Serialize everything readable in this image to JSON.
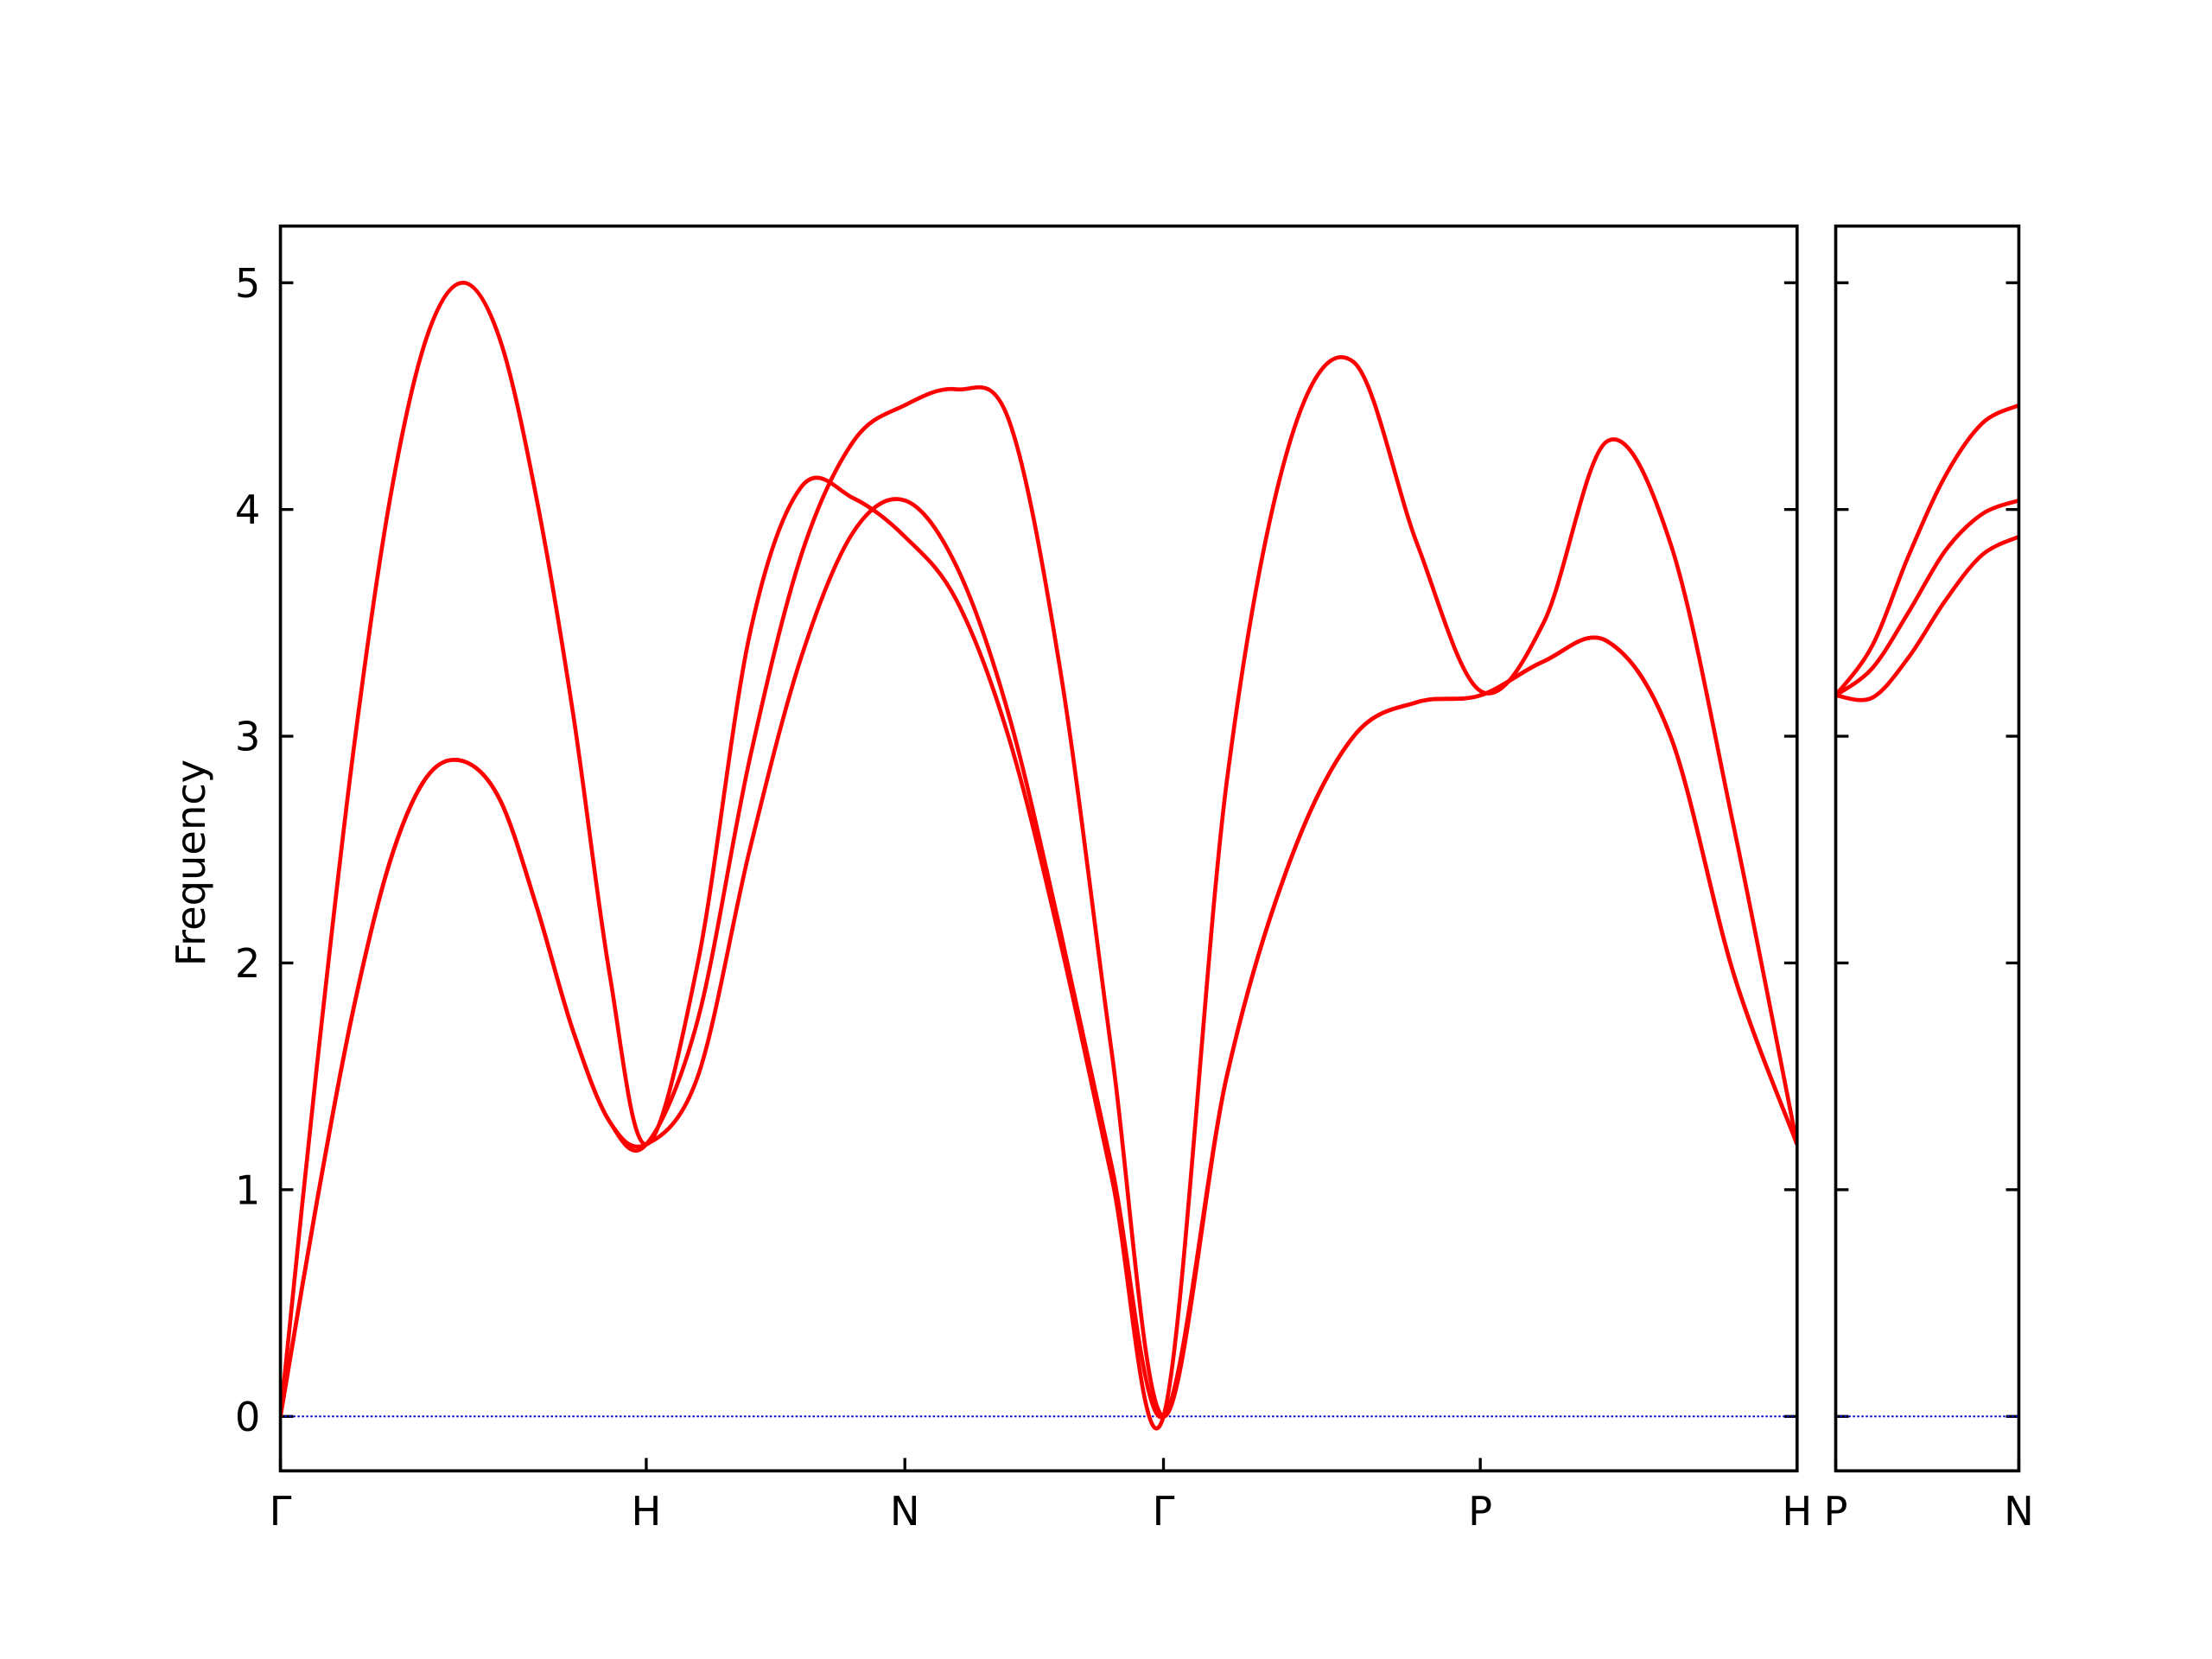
{
  "chart_data": [
    {
      "type": "line",
      "ylabel": "Frequency",
      "x": [
        0,
        0.1,
        0.2,
        0.3,
        0.4,
        0.5,
        0.6,
        0.7,
        0.8,
        0.9,
        1.0,
        1.141,
        1.283,
        1.424,
        1.566,
        1.707,
        1.848,
        1.99,
        2.131,
        2.273,
        2.414,
        2.587,
        2.76,
        2.934,
        3.107,
        3.28,
        3.453,
        3.626,
        3.8,
        3.973,
        4.146
      ],
      "series": [
        {
          "color": "#ff0000",
          "values": [
            0,
            1.55,
            2.94,
            4.05,
            4.76,
            5.0,
            4.75,
            4.05,
            3.1,
            1.95,
            1.2,
            2.0,
            3.45,
            4.1,
            4.05,
            3.88,
            3.6,
            3.0,
            2.1,
            1.05,
            0,
            2.8,
            4.3,
            4.65,
            3.85,
            3.2,
            3.5,
            4.3,
            3.85,
            2.6,
            1.2
          ]
        },
        {
          "color": "#ff0000",
          "values": [
            0,
            0.95,
            1.8,
            2.45,
            2.82,
            2.89,
            2.72,
            2.25,
            1.7,
            1.3,
            1.2,
            1.75,
            2.9,
            3.8,
            4.3,
            4.46,
            4.53,
            4.4,
            3.3,
            1.6,
            0,
            1.5,
            2.45,
            3.0,
            3.15,
            3.18,
            3.33,
            3.42,
            3.0,
            1.95,
            1.2
          ]
        },
        {
          "color": "#ff0000",
          "values": [
            0,
            0.95,
            1.8,
            2.45,
            2.82,
            2.89,
            2.72,
            2.25,
            1.7,
            1.3,
            1.2,
            1.5,
            2.5,
            3.35,
            3.9,
            4.04,
            3.75,
            3.1,
            2.15,
            1.1,
            0,
            1.5,
            2.45,
            3.0,
            3.15,
            3.18,
            3.33,
            3.42,
            3.0,
            1.95,
            1.2
          ]
        }
      ],
      "hline": 0,
      "hline_color": "#0000cc",
      "xlim": [
        0,
        4.146
      ],
      "ylim": [
        -0.24,
        5.25
      ],
      "xticks": [
        {
          "value": 0,
          "label": "Γ"
        },
        {
          "value": 1.0,
          "label": "H"
        },
        {
          "value": 1.707,
          "label": "N"
        },
        {
          "value": 2.414,
          "label": "Γ"
        },
        {
          "value": 3.28,
          "label": "P"
        },
        {
          "value": 4.146,
          "label": "H"
        }
      ],
      "yticks": [
        0,
        1,
        2,
        3,
        4,
        5
      ],
      "ytick_labels": true
    },
    {
      "type": "line",
      "x": [
        0,
        0.1,
        0.2,
        0.3,
        0.4,
        0.5
      ],
      "series": [
        {
          "color": "#ff0000",
          "values": [
            3.18,
            3.4,
            3.8,
            4.15,
            4.38,
            4.46
          ]
        },
        {
          "color": "#ff0000",
          "values": [
            3.18,
            3.3,
            3.55,
            3.82,
            3.98,
            4.04
          ]
        },
        {
          "color": "#ff0000",
          "values": [
            3.18,
            3.17,
            3.35,
            3.6,
            3.8,
            3.88
          ]
        }
      ],
      "hline": 0,
      "hline_color": "#0000cc",
      "xlim": [
        0,
        0.5
      ],
      "ylim": [
        -0.24,
        5.25
      ],
      "xticks": [
        {
          "value": 0,
          "label": "P"
        },
        {
          "value": 0.5,
          "label": "N"
        }
      ],
      "yticks": [
        0,
        1,
        2,
        3,
        4,
        5
      ],
      "ytick_labels": false
    }
  ]
}
